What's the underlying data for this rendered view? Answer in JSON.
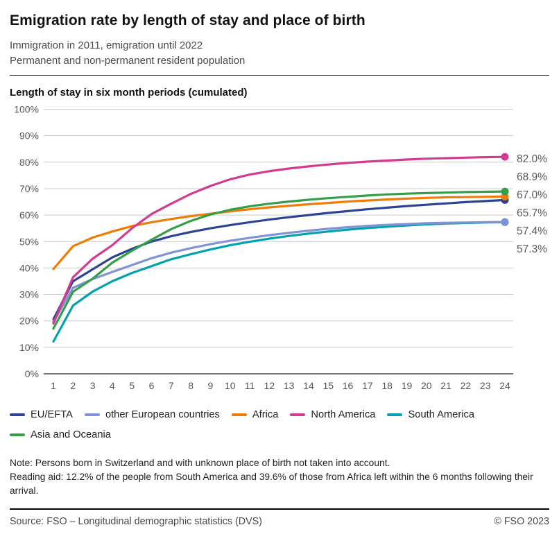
{
  "header": {
    "title": "Emigration rate by length of stay and place of birth",
    "subtitle_line1": "Immigration in 2011, emigration until 2022",
    "subtitle_line2": "Permanent and non-permanent resident population"
  },
  "chart": {
    "axis_title": "Length of stay in six month periods (cumulated)",
    "grid_color": "#cccccc",
    "axis_color": "#4d4d4d",
    "tick_label_color": "#555555",
    "end_label_color": "#595959"
  },
  "chart_data": {
    "type": "line",
    "title": "Length of stay in six month periods (cumulated)",
    "xlabel": "",
    "ylabel": "",
    "x": [
      1,
      2,
      3,
      4,
      5,
      6,
      7,
      8,
      9,
      10,
      11,
      12,
      13,
      14,
      15,
      16,
      17,
      18,
      19,
      20,
      21,
      22,
      23,
      24
    ],
    "ylim": [
      0,
      100
    ],
    "y_tick_step": 10,
    "y_tick_suffix": "%",
    "grid": true,
    "legend_position": "bottom",
    "end_value_labels": [
      "82.0%",
      "68.9%",
      "67.0%",
      "65.7%",
      "57.4%",
      "57.3%"
    ],
    "series": [
      {
        "name": "EU/EFTA",
        "color": "#2d4494",
        "end_label": "65.7%",
        "values": [
          20.6,
          35.0,
          39.5,
          44.0,
          47.2,
          50.0,
          52.0,
          53.6,
          55.0,
          56.2,
          57.3,
          58.3,
          59.2,
          60.0,
          60.8,
          61.5,
          62.2,
          62.8,
          63.4,
          63.9,
          64.4,
          64.9,
          65.3,
          65.7
        ]
      },
      {
        "name": "other European countries",
        "color": "#7f93d6",
        "end_label": "57.4%",
        "values": [
          19.6,
          32.5,
          35.8,
          38.5,
          41.1,
          43.7,
          45.8,
          47.5,
          49.0,
          50.3,
          51.4,
          52.4,
          53.3,
          54.1,
          54.8,
          55.4,
          55.9,
          56.3,
          56.6,
          56.9,
          57.1,
          57.2,
          57.3,
          57.4
        ]
      },
      {
        "name": "Africa",
        "color": "#ef7d05",
        "end_label": "67.0%",
        "values": [
          39.6,
          48.2,
          51.5,
          53.8,
          55.8,
          57.3,
          58.5,
          59.6,
          60.5,
          61.4,
          62.2,
          62.9,
          63.5,
          64.1,
          64.6,
          65.1,
          65.5,
          65.9,
          66.2,
          66.5,
          66.7,
          66.8,
          66.9,
          67.0
        ]
      },
      {
        "name": "North America",
        "color": "#d23b90",
        "end_label": "82.0%",
        "values": [
          19.0,
          36.5,
          43.5,
          48.6,
          55.0,
          60.4,
          64.3,
          68.0,
          71.0,
          73.5,
          75.3,
          76.6,
          77.6,
          78.4,
          79.1,
          79.7,
          80.2,
          80.6,
          81.0,
          81.3,
          81.5,
          81.7,
          81.9,
          82.0
        ]
      },
      {
        "name": "South America",
        "color": "#00a2ad",
        "end_label": "57.3%",
        "values": [
          12.2,
          25.8,
          31.1,
          35.0,
          38.1,
          40.7,
          43.3,
          45.2,
          47.0,
          48.6,
          49.9,
          51.1,
          52.1,
          53.0,
          53.8,
          54.5,
          55.1,
          55.6,
          56.1,
          56.5,
          56.8,
          57.0,
          57.2,
          57.3
        ]
      },
      {
        "name": "Asia and Oceania",
        "color": "#359e49",
        "end_label": "68.9%",
        "values": [
          17.1,
          31.0,
          36.0,
          42.0,
          46.5,
          50.7,
          54.7,
          57.8,
          60.2,
          62.0,
          63.3,
          64.3,
          65.1,
          65.8,
          66.4,
          66.9,
          67.4,
          67.8,
          68.1,
          68.3,
          68.5,
          68.7,
          68.8,
          68.9
        ]
      }
    ],
    "draw_order": [
      "EU/EFTA",
      "South America",
      "other European countries",
      "Africa",
      "Asia and Oceania",
      "North America"
    ]
  },
  "legend": {
    "items": [
      {
        "label": "EU/EFTA",
        "color": "#2d4494"
      },
      {
        "label": "other European countries",
        "color": "#7f93d6"
      },
      {
        "label": "Africa",
        "color": "#ef7d05"
      },
      {
        "label": "North America",
        "color": "#d23b90"
      },
      {
        "label": "South America",
        "color": "#00a2ad"
      },
      {
        "label": "Asia and Oceania",
        "color": "#359e49"
      }
    ]
  },
  "notes": {
    "note": "Note: Persons born in Switzerland and with unknown place of birth not taken into account.",
    "reading_aid": "Reading aid: 12.2% of the people from South America and 39.6% of those from Africa left within the 6 months following their arrival."
  },
  "footer": {
    "source": "Source: FSO – Longitudinal demographic statistics (DVS)",
    "copyright": "© FSO 2023"
  }
}
